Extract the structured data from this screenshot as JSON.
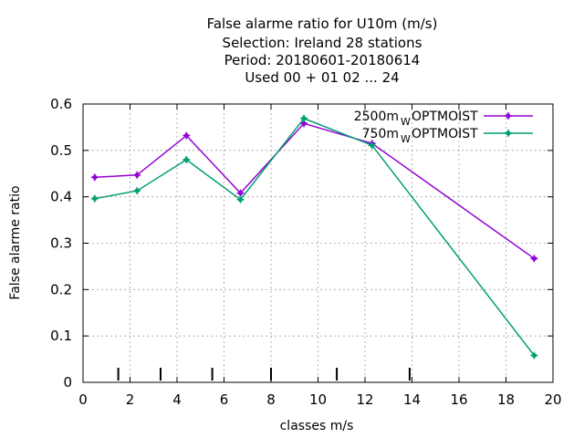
{
  "chart_data": {
    "type": "line",
    "title_lines": [
      "False alarme ratio  for U10m (m/s)",
      "Selection: Ireland     28 stations",
      "Period: 20180601-20180614",
      "Used  00 + 01 02 ... 24"
    ],
    "xlabel": "classes m/s",
    "ylabel": "False alarme ratio",
    "xlim": [
      0,
      20
    ],
    "ylim": [
      0,
      0.6
    ],
    "x_ticks": [
      0,
      2,
      4,
      6,
      8,
      10,
      12,
      14,
      16,
      18,
      20
    ],
    "y_ticks": [
      0,
      0.1,
      0.2,
      0.3,
      0.4,
      0.5,
      0.6
    ],
    "x_tick_labels": [
      "0",
      "2",
      "4",
      "6",
      "8",
      "10",
      "12",
      "14",
      "16",
      "18",
      "20"
    ],
    "y_tick_labels": [
      "0",
      "0.1",
      "0.2",
      "0.3",
      "0.4",
      "0.5",
      "0.6"
    ],
    "grid": true,
    "legend_position": "top-right",
    "class_boundaries": [
      1.5,
      3.3,
      5.5,
      8.0,
      10.8,
      13.9
    ],
    "series": [
      {
        "name": "2500m",
        "name_sub": "W",
        "name_suffix": "OPTMOIST",
        "color": "#9400d3",
        "x": [
          0.5,
          2.3,
          4.4,
          6.7,
          9.4,
          12.3,
          19.2
        ],
        "y": [
          0.442,
          0.447,
          0.532,
          0.408,
          0.558,
          0.515,
          0.267
        ]
      },
      {
        "name": "750m",
        "name_sub": "W",
        "name_suffix": "OPTMOIST",
        "color": "#009e73",
        "x": [
          0.5,
          2.3,
          4.4,
          6.7,
          9.4,
          12.3,
          19.2
        ],
        "y": [
          0.396,
          0.413,
          0.48,
          0.394,
          0.569,
          0.511,
          0.058
        ]
      }
    ]
  }
}
